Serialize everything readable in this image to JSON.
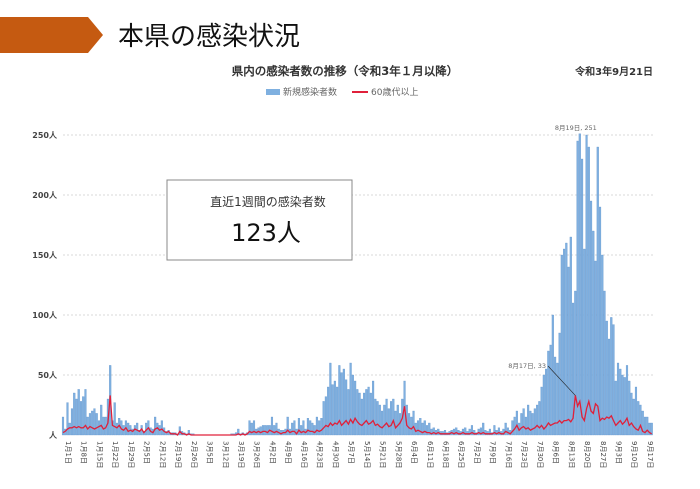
{
  "slide": {
    "title": "本県の感染状況",
    "accent_color": "#c55a11",
    "date": "令和3年9月21日"
  },
  "summary_box": {
    "label": "直近1週間の感染者数",
    "value": "123人"
  },
  "chart_data": {
    "type": "bar",
    "title": "県内の感染者数の推移（令和3年１月以降）",
    "xlabel": "",
    "ylabel": "",
    "x_range": [
      "1月1日",
      "9月20日"
    ],
    "x_interval": "daily",
    "ylim": [
      0,
      250
    ],
    "y_ticks": [
      "人",
      "50人",
      "100人",
      "150人",
      "200人",
      "250人"
    ],
    "y_tick_values": [
      0,
      50,
      100,
      150,
      200,
      250
    ],
    "grid": true,
    "legend_position": "top",
    "x_ticks": [
      "1月1日",
      "1月8日",
      "1月15日",
      "1月22日",
      "1月29日",
      "2月5日",
      "2月12日",
      "2月19日",
      "2月26日",
      "3月5日",
      "3月12日",
      "3月19日",
      "3月26日",
      "4月2日",
      "4月9日",
      "4月16日",
      "4月23日",
      "4月30日",
      "5月7日",
      "5月14日",
      "5月21日",
      "5月28日",
      "6月4日",
      "6月11日",
      "6月18日",
      "6月25日",
      "7月2日",
      "7月9日",
      "7月16日",
      "7月23日",
      "7月30日",
      "8月6日",
      "8月13日",
      "8月20日",
      "8月27日",
      "9月3日",
      "9月10日",
      "9月17日"
    ],
    "series": [
      {
        "name": "新規感染者数",
        "kind": "bar",
        "color": "#7fb0e0",
        "values": [
          15,
          5,
          27,
          10,
          22,
          35,
          30,
          38,
          28,
          32,
          38,
          15,
          18,
          20,
          22,
          18,
          12,
          25,
          15,
          15,
          30,
          58,
          12,
          27,
          10,
          14,
          12,
          8,
          12,
          10,
          8,
          5,
          8,
          10,
          4,
          8,
          3,
          10,
          12,
          6,
          5,
          15,
          10,
          8,
          12,
          6,
          3,
          4,
          2,
          2,
          2,
          1,
          7,
          3,
          2,
          1,
          4,
          1,
          1,
          0,
          0,
          0,
          0,
          0,
          0,
          0,
          0,
          0,
          0,
          0,
          0,
          0,
          0,
          0,
          0,
          1,
          1,
          2,
          5,
          1,
          2,
          1,
          2,
          12,
          10,
          12,
          5,
          6,
          7,
          8,
          8,
          8,
          8,
          15,
          8,
          10,
          5,
          4,
          4,
          5,
          15,
          5,
          10,
          12,
          5,
          14,
          8,
          12,
          5,
          14,
          12,
          10,
          8,
          15,
          12,
          14,
          28,
          32,
          40,
          60,
          42,
          45,
          40,
          58,
          52,
          55,
          46,
          38,
          60,
          50,
          45,
          38,
          35,
          30,
          35,
          38,
          40,
          35,
          45,
          30,
          28,
          25,
          20,
          25,
          30,
          22,
          28,
          30,
          20,
          25,
          18,
          30,
          45,
          25,
          18,
          15,
          20,
          10,
          12,
          14,
          10,
          12,
          8,
          10,
          5,
          6,
          4,
          5,
          3,
          3,
          4,
          2,
          3,
          4,
          5,
          6,
          4,
          3,
          5,
          6,
          3,
          5,
          8,
          4,
          2,
          5,
          6,
          10,
          4,
          3,
          5,
          2,
          8,
          4,
          6,
          3,
          5,
          10,
          6,
          4,
          12,
          15,
          20,
          10,
          18,
          22,
          15,
          25,
          20,
          18,
          22,
          25,
          28,
          40,
          50,
          55,
          70,
          75,
          100,
          65,
          60,
          85,
          150,
          155,
          160,
          140,
          165,
          110,
          120,
          245,
          251,
          230,
          155,
          250,
          240,
          195,
          170,
          145,
          240,
          190,
          150,
          120,
          95,
          80,
          98,
          92,
          45,
          60,
          55,
          50,
          48,
          58,
          45,
          35,
          30,
          40,
          28,
          25,
          20,
          15,
          15,
          10,
          10
        ]
      },
      {
        "name": "60歳代以上",
        "kind": "line",
        "color": "#e0203a",
        "values": [
          2,
          3,
          5,
          6,
          6,
          7,
          6,
          7,
          6,
          6,
          8,
          5,
          7,
          6,
          5,
          6,
          7,
          8,
          5,
          6,
          10,
          33,
          8,
          7,
          6,
          8,
          5,
          4,
          6,
          3,
          4,
          3,
          5,
          4,
          3,
          5,
          2,
          4,
          6,
          3,
          2,
          5,
          6,
          4,
          5,
          3,
          2,
          3,
          1,
          1,
          1,
          0,
          3,
          1,
          1,
          0,
          1,
          0,
          0,
          0,
          0,
          0,
          0,
          0,
          0,
          0,
          0,
          0,
          0,
          0,
          0,
          0,
          0,
          0,
          0,
          0,
          0,
          0,
          1,
          0,
          1,
          0,
          1,
          3,
          2,
          3,
          2,
          3,
          2,
          3,
          3,
          2,
          4,
          3,
          2,
          3,
          2,
          1,
          2,
          2,
          4,
          2,
          3,
          3,
          1,
          4,
          2,
          3,
          2,
          4,
          3,
          3,
          2,
          4,
          3,
          4,
          6,
          8,
          7,
          10,
          8,
          10,
          9,
          12,
          8,
          10,
          12,
          9,
          13,
          10,
          14,
          11,
          9,
          8,
          10,
          12,
          9,
          10,
          12,
          8,
          9,
          7,
          6,
          8,
          10,
          7,
          8,
          12,
          6,
          8,
          10,
          14,
          24,
          8,
          6,
          5,
          7,
          3,
          4,
          3,
          2,
          3,
          2,
          2,
          1,
          2,
          1,
          2,
          1,
          1,
          1,
          1,
          1,
          2,
          1,
          2,
          1,
          1,
          2,
          1,
          1,
          1,
          2,
          1,
          1,
          2,
          1,
          2,
          1,
          1,
          1,
          1,
          2,
          1,
          2,
          1,
          1,
          3,
          2,
          1,
          3,
          5,
          8,
          4,
          6,
          7,
          5,
          6,
          4,
          5,
          6,
          8,
          6,
          8,
          5,
          7,
          10,
          8,
          9,
          10,
          10,
          12,
          10,
          12,
          12,
          13,
          11,
          14,
          33,
          24,
          28,
          15,
          12,
          22,
          28,
          20,
          18,
          26,
          24,
          12,
          14,
          13,
          15,
          14,
          16,
          12,
          8,
          10,
          12,
          9,
          11,
          14,
          8,
          10,
          7,
          5,
          4,
          8,
          3,
          2,
          4,
          2,
          1
        ]
      }
    ],
    "annotations": [
      {
        "text": "8月19日, 251",
        "series": "新規感染者数",
        "x": "8月19日",
        "y": 251
      },
      {
        "text": "8月17日, 33",
        "series": "60歳代以上",
        "x": "8月17日",
        "y": 33
      }
    ]
  }
}
